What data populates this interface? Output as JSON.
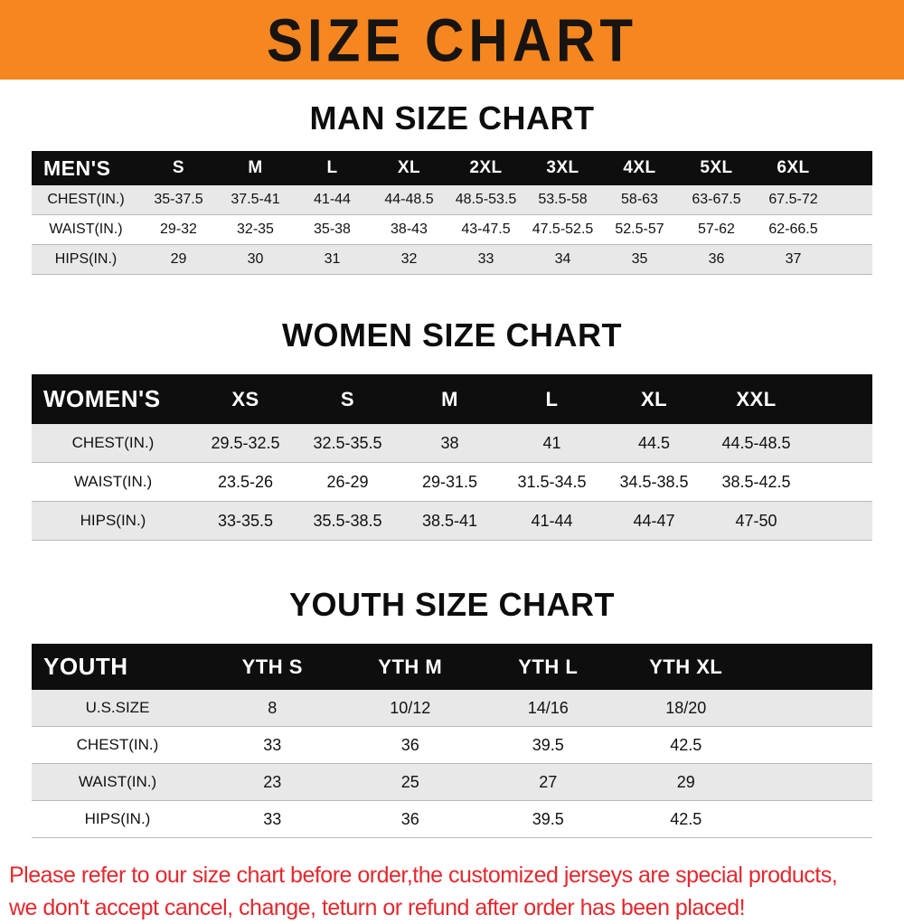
{
  "banner": {
    "title": "SIZE CHART",
    "bg_color": "#f6861f"
  },
  "colors": {
    "header_row_bg": "#0e0e0e",
    "shaded_row_bg": "#e8e8e8",
    "footnote_text": "#e3282e"
  },
  "sections": [
    {
      "heading": "MAN SIZE CHART",
      "table": {
        "header": [
          "MEN'S",
          "S",
          "M",
          "L",
          "XL",
          "2XL",
          "3XL",
          "4XL",
          "5XL",
          "6XL"
        ],
        "rows": [
          [
            "CHEST(IN.)",
            "35-37.5",
            "37.5-41",
            "41-44",
            "44-48.5",
            "48.5-53.5",
            "53.5-58",
            "58-63",
            "63-67.5",
            "67.5-72"
          ],
          [
            "WAIST(IN.)",
            "29-32",
            "32-35",
            "35-38",
            "38-43",
            "43-47.5",
            "47.5-52.5",
            "52.5-57",
            "57-62",
            "62-66.5"
          ],
          [
            "HIPS(IN.)",
            "29",
            "30",
            "31",
            "32",
            "33",
            "34",
            "35",
            "36",
            "37"
          ]
        ]
      }
    },
    {
      "heading": "WOMEN SIZE CHART",
      "table": {
        "header": [
          "WOMEN'S",
          "XS",
          "S",
          "M",
          "L",
          "XL",
          "XXL"
        ],
        "rows": [
          [
            "CHEST(IN.)",
            "29.5-32.5",
            "32.5-35.5",
            "38",
            "41",
            "44.5",
            "44.5-48.5"
          ],
          [
            "WAIST(IN.)",
            "23.5-26",
            "26-29",
            "29-31.5",
            "31.5-34.5",
            "34.5-38.5",
            "38.5-42.5"
          ],
          [
            "HIPS(IN.)",
            "33-35.5",
            "35.5-38.5",
            "38.5-41",
            "41-44",
            "44-47",
            "47-50"
          ]
        ]
      }
    },
    {
      "heading": "YOUTH SIZE CHART",
      "table": {
        "header": [
          "YOUTH",
          "YTH S",
          "YTH M",
          "YTH L",
          "YTH XL"
        ],
        "rows": [
          [
            "U.S.SIZE",
            "8",
            "10/12",
            "14/16",
            "18/20"
          ],
          [
            "CHEST(IN.)",
            "33",
            "36",
            "39.5",
            "42.5"
          ],
          [
            "WAIST(IN.)",
            "23",
            "25",
            "27",
            "29"
          ],
          [
            "HIPS(IN.)",
            "33",
            "36",
            "39.5",
            "42.5"
          ]
        ]
      }
    }
  ],
  "footnote": {
    "lines": [
      "Please refer to our size chart before order,the customized jerseys are special products,",
      "we don't accept cancel, change, teturn or refund after order has been placed!"
    ]
  }
}
